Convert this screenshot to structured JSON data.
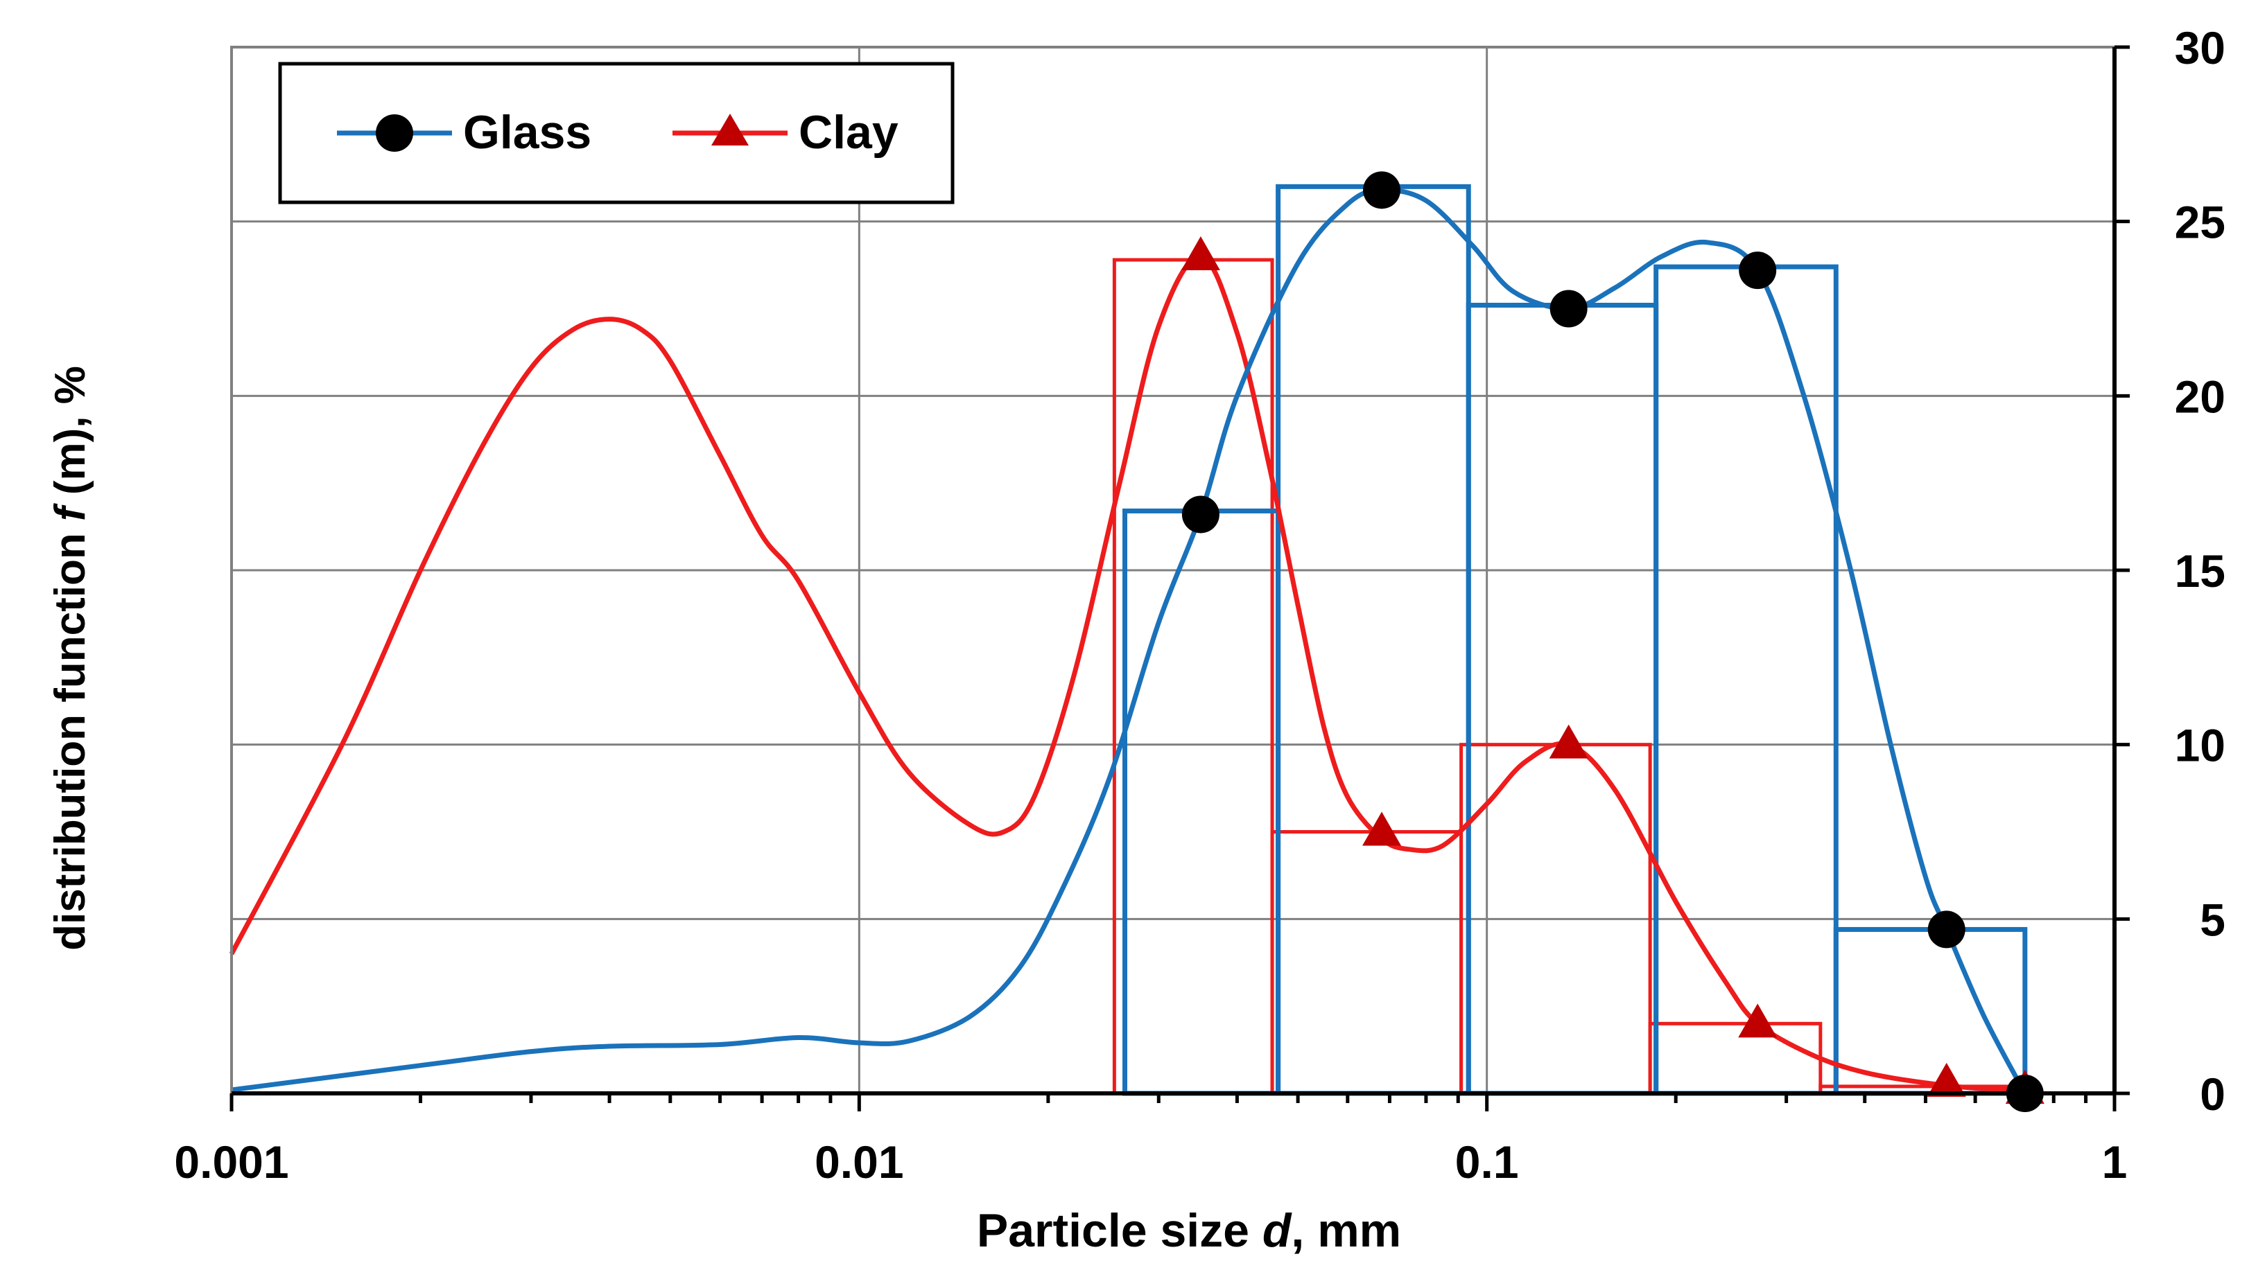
{
  "chart_data": {
    "type": "line",
    "xscale": "log",
    "xlim": [
      0.001,
      1
    ],
    "ylim": [
      0,
      30
    ],
    "xlabel_prefix": "Particle size ",
    "xlabel_var": "d",
    "xlabel_suffix": ", mm",
    "ylabel_prefix": "distribution function ",
    "ylabel_var": "f",
    "ylabel_suffix": " (m), %",
    "x_tick_labels": [
      {
        "value": 0.001,
        "label": "0.001"
      },
      {
        "value": 0.01,
        "label": "0.01"
      },
      {
        "value": 0.1,
        "label": "0.1"
      },
      {
        "value": 1,
        "label": "1"
      }
    ],
    "y_tick_labels": [
      {
        "value": 0,
        "label": "0"
      },
      {
        "value": 5,
        "label": "5"
      },
      {
        "value": 10,
        "label": "10"
      },
      {
        "value": 15,
        "label": "15"
      },
      {
        "value": 20,
        "label": "20"
      },
      {
        "value": 25,
        "label": "25"
      },
      {
        "value": 30,
        "label": "30"
      }
    ],
    "grid": true,
    "legend_position": "top-left",
    "series": [
      {
        "name": "Glass",
        "color": "#1a72bb",
        "marker": "circle",
        "marker_color": "#000000",
        "points": [
          [
            0.035,
            16.6
          ],
          [
            0.068,
            25.9
          ],
          [
            0.135,
            22.5
          ],
          [
            0.27,
            23.6
          ],
          [
            0.54,
            4.7
          ],
          [
            0.72,
            0
          ]
        ],
        "curve": [
          [
            0.001,
            0.1
          ],
          [
            0.002,
            0.8
          ],
          [
            0.003,
            1.2
          ],
          [
            0.004,
            1.35
          ],
          [
            0.006,
            1.4
          ],
          [
            0.008,
            1.6
          ],
          [
            0.01,
            1.45
          ],
          [
            0.012,
            1.5
          ],
          [
            0.015,
            2.2
          ],
          [
            0.018,
            3.6
          ],
          [
            0.021,
            5.8
          ],
          [
            0.025,
            9.0
          ],
          [
            0.03,
            13.5
          ],
          [
            0.035,
            16.6
          ],
          [
            0.04,
            20.0
          ],
          [
            0.05,
            23.8
          ],
          [
            0.06,
            25.5
          ],
          [
            0.068,
            25.9
          ],
          [
            0.08,
            25.6
          ],
          [
            0.095,
            24.3
          ],
          [
            0.11,
            23.0
          ],
          [
            0.135,
            22.5
          ],
          [
            0.16,
            23.1
          ],
          [
            0.19,
            24.0
          ],
          [
            0.225,
            24.4
          ],
          [
            0.27,
            23.6
          ],
          [
            0.32,
            20.0
          ],
          [
            0.38,
            15.0
          ],
          [
            0.44,
            10.0
          ],
          [
            0.5,
            6.2
          ],
          [
            0.54,
            4.7
          ],
          [
            0.62,
            2.2
          ],
          [
            0.72,
            0
          ]
        ],
        "bins": [
          {
            "x0": 0.0265,
            "x1": 0.0465,
            "value": 16.7
          },
          {
            "x0": 0.0465,
            "x1": 0.0935,
            "value": 26.0
          },
          {
            "x0": 0.0935,
            "x1": 0.186,
            "value": 22.6
          },
          {
            "x0": 0.186,
            "x1": 0.36,
            "value": 23.7
          },
          {
            "x0": 0.36,
            "x1": 0.72,
            "value": 4.7
          }
        ]
      },
      {
        "name": "Clay",
        "color": "#ee1c1c",
        "marker": "triangle",
        "marker_color": "#c00000",
        "points": [
          [
            0.035,
            24.0
          ],
          [
            0.068,
            7.5
          ],
          [
            0.135,
            10.0
          ],
          [
            0.27,
            2.0
          ],
          [
            0.54,
            0.3
          ],
          [
            0.72,
            0.1
          ]
        ],
        "curve": [
          [
            0.001,
            4.0
          ],
          [
            0.0015,
            10.0
          ],
          [
            0.002,
            15.0
          ],
          [
            0.0025,
            18.5
          ],
          [
            0.003,
            20.8
          ],
          [
            0.0035,
            21.9
          ],
          [
            0.004,
            22.2
          ],
          [
            0.0045,
            21.9
          ],
          [
            0.005,
            21.0
          ],
          [
            0.006,
            18.3
          ],
          [
            0.007,
            16.0
          ],
          [
            0.008,
            14.7
          ],
          [
            0.01,
            11.5
          ],
          [
            0.012,
            9.2
          ],
          [
            0.015,
            7.7
          ],
          [
            0.017,
            7.5
          ],
          [
            0.019,
            8.5
          ],
          [
            0.022,
            12.0
          ],
          [
            0.026,
            17.5
          ],
          [
            0.03,
            22.0
          ],
          [
            0.035,
            24.0
          ],
          [
            0.04,
            21.8
          ],
          [
            0.045,
            18.0
          ],
          [
            0.05,
            14.0
          ],
          [
            0.055,
            10.5
          ],
          [
            0.06,
            8.5
          ],
          [
            0.068,
            7.3
          ],
          [
            0.075,
            7.0
          ],
          [
            0.085,
            7.1
          ],
          [
            0.1,
            8.3
          ],
          [
            0.115,
            9.5
          ],
          [
            0.135,
            10.0
          ],
          [
            0.16,
            8.7
          ],
          [
            0.2,
            5.5
          ],
          [
            0.24,
            3.2
          ],
          [
            0.27,
            2.0
          ],
          [
            0.33,
            1.1
          ],
          [
            0.4,
            0.6
          ],
          [
            0.5,
            0.3
          ],
          [
            0.6,
            0.15
          ],
          [
            0.72,
            0.1
          ]
        ],
        "bins": [
          {
            "x0": 0.0255,
            "x1": 0.0455,
            "value": 23.9
          },
          {
            "x0": 0.0455,
            "x1": 0.091,
            "value": 7.5
          },
          {
            "x0": 0.091,
            "x1": 0.182,
            "value": 10.0
          },
          {
            "x0": 0.182,
            "x1": 0.34,
            "value": 2.0
          },
          {
            "x0": 0.34,
            "x1": 0.7,
            "value": 0.2
          }
        ]
      }
    ]
  }
}
